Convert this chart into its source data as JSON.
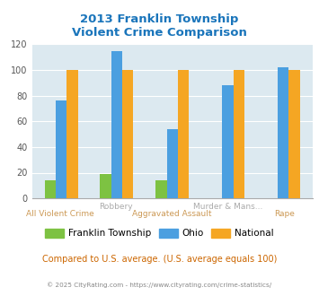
{
  "title": "2013 Franklin Township\nViolent Crime Comparison",
  "groups": [
    {
      "name": "All Violent Crime",
      "franklin": 14,
      "ohio": 76,
      "national": 100
    },
    {
      "name": "Robbery",
      "franklin": 19,
      "ohio": 115,
      "national": 100
    },
    {
      "name": "Aggravated Assault",
      "franklin": 14,
      "ohio": 54,
      "national": 100
    },
    {
      "name": "Murder & Mans...",
      "franklin": 0,
      "ohio": 88,
      "national": 100
    },
    {
      "name": "Rape",
      "franklin": 0,
      "ohio": 102,
      "national": 100
    }
  ],
  "top_labels": [
    "",
    "Robbery",
    "",
    "Murder & Mans...",
    ""
  ],
  "bot_labels": [
    "All Violent Crime",
    "",
    "Aggravated Assault",
    "",
    "Rape"
  ],
  "franklin_color": "#7dc242",
  "ohio_color": "#4b9fe0",
  "national_color": "#f5a623",
  "bg_color": "#dce9f0",
  "title_color": "#1a75bb",
  "top_label_color": "#aaaaaa",
  "bot_label_color": "#cc9955",
  "ylim": [
    0,
    120
  ],
  "yticks": [
    0,
    20,
    40,
    60,
    80,
    100,
    120
  ],
  "bar_width": 0.2,
  "footer1": "Compared to U.S. average. (U.S. average equals 100)",
  "footer2": "© 2025 CityRating.com - https://www.cityrating.com/crime-statistics/",
  "legend_labels": [
    "Franklin Township",
    "Ohio",
    "National"
  ]
}
